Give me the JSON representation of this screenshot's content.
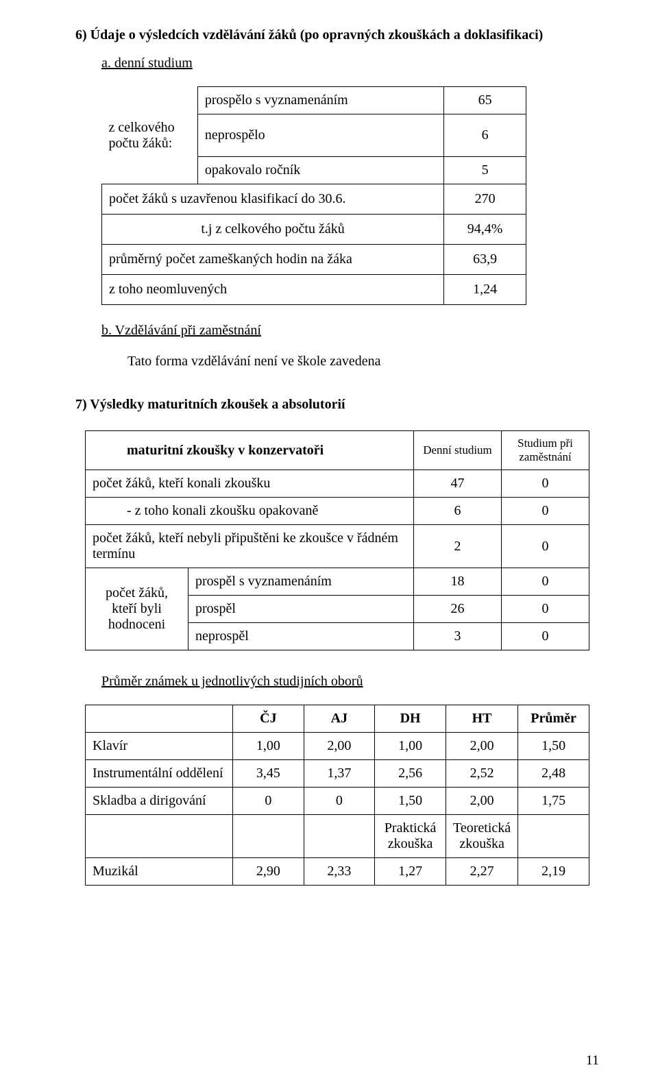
{
  "s6": {
    "title": "6)  Údaje o výsledcích vzdělávání žáků (po opravných zkouškách a doklasifikaci)",
    "a_title": "a.    denní studium",
    "t1": {
      "rowspan_label": "z celkového počtu žáků:",
      "r1_label": "prospělo s vyznamenáním",
      "r1_val": "65",
      "r2_label": "neprospělo",
      "r2_val": "6",
      "r3_label": "opakovalo ročník",
      "r3_val": "5",
      "r4_label": "počet žáků s uzavřenou klasifikací do 30.6.",
      "r4_val": "270",
      "r5_label": "t.j  z celkového počtu žáků",
      "r5_val": "94,4%",
      "r6_label": "průměrný počet zameškaných hodin na žáka",
      "r6_val": "63,9",
      "r7_label": "z toho neomluvených",
      "r7_val": "1,24"
    },
    "b_title": "b.    Vzdělávání při zaměstnání",
    "b_text": "Tato forma vzdělávání není ve škole zavedena"
  },
  "s7": {
    "title": "7)  Výsledky maturitních zkoušek a absolutorií",
    "t2": {
      "h_main": "maturitní zkoušky v konzervatoři",
      "h_c1": "Denní studium",
      "h_c2": "Studium při zaměstnání",
      "r1_label": "počet žáků, kteří konali zkoušku",
      "r1_v1": "47",
      "r1_v2": "0",
      "r2_label": "- z toho konali zkoušku opakovaně",
      "r2_v1": "6",
      "r2_v2": "0",
      "r3_label": "počet žáků, kteří nebyli připuštěni ke zkoušce v řádném termínu",
      "r3_v1": "2",
      "r3_v2": "0",
      "rowspan_label": "počet žáků,\nkteří byli hodnoceni",
      "r4_label": "prospěl s vyznamenáním",
      "r4_v1": "18",
      "r4_v2": "0",
      "r5_label": "prospěl",
      "r5_v1": "26",
      "r5_v2": "0",
      "r6_label": "neprospěl",
      "r6_v1": "3",
      "r6_v2": "0"
    },
    "avg_title": "Průměr známek u jednotlivých studijních oborů",
    "t3": {
      "cols": [
        "ČJ",
        "AJ",
        "DH",
        "HT",
        "Průměr"
      ],
      "rows": [
        {
          "name": "Klavír",
          "v": [
            "1,00",
            "2,00",
            "1,00",
            "2,00",
            "1,50"
          ]
        },
        {
          "name": "Instrumentální oddělení",
          "v": [
            "3,45",
            "1,37",
            "2,56",
            "2,52",
            "2,48"
          ]
        },
        {
          "name": "Skladba a dirigování",
          "v": [
            "0",
            "0",
            "1,50",
            "2,00",
            "1,75"
          ]
        }
      ],
      "sub_cols": [
        "",
        "",
        "Praktická zkouška",
        "Teoretická zkouška",
        ""
      ],
      "last": {
        "name": "Muzikál",
        "v": [
          "2,90",
          "2,33",
          "1,27",
          "2,27",
          "2,19"
        ]
      }
    }
  },
  "page_number": "11"
}
